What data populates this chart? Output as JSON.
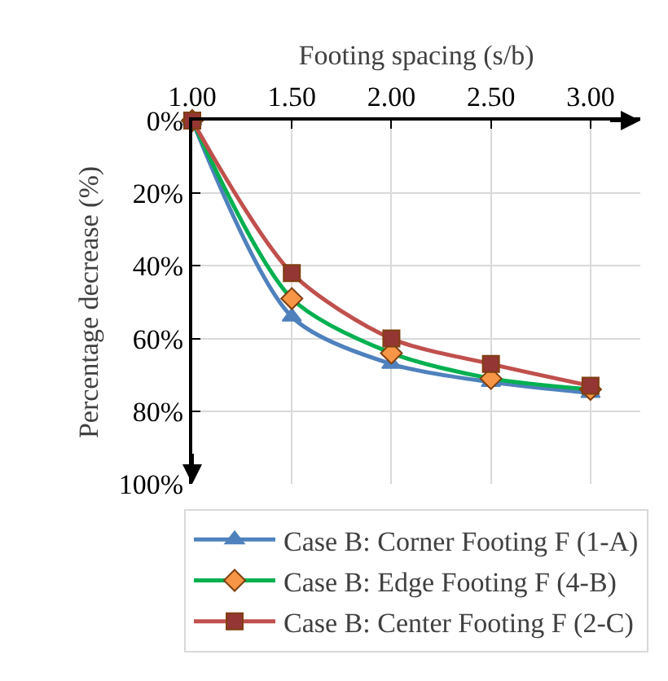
{
  "chart_data": {
    "type": "line",
    "xlabel": "Footing spacing (s/b)",
    "ylabel": "Percentage decrease (%)",
    "x": [
      1,
      1.5,
      2,
      2.5,
      3
    ],
    "series": [
      {
        "name": "Case B: Corner Footing F (1-A)",
        "color": "#4f81bd",
        "marker": "triangle",
        "values": [
          0,
          54,
          67,
          72,
          75
        ]
      },
      {
        "name": "Case B: Edge Footing F (4-B)",
        "color": "#00b050",
        "colors": [
          "#f79646",
          "#f79646",
          "#f79646",
          "#f79646",
          "#f79646"
        ],
        "marker": "diamond",
        "values": [
          0,
          49,
          64,
          71,
          74
        ]
      },
      {
        "name": "Case B: Center Footing F (2-C)",
        "color": "#c0504d",
        "colors": [
          "#943634",
          "#943634",
          "#943634",
          "#943634",
          "#943634"
        ],
        "marker": "square",
        "values": [
          0,
          42,
          60,
          67,
          73
        ]
      }
    ],
    "xlim": [
      1,
      3.25
    ],
    "xticks": [
      {
        "value": 1,
        "label": "1.00"
      },
      {
        "value": 1.5,
        "label": "1.50"
      },
      {
        "value": 2,
        "label": "2.00"
      },
      {
        "value": 2.5,
        "label": "2.50"
      },
      {
        "value": 3,
        "label": "3.00"
      }
    ],
    "ylim": [
      100,
      0
    ],
    "yticks": [
      {
        "value": 0,
        "label": "0%"
      },
      {
        "value": 20,
        "label": "20%"
      },
      {
        "value": 40,
        "label": "40%"
      },
      {
        "value": 60,
        "label": "60%"
      },
      {
        "value": 80,
        "label": "80%"
      },
      {
        "value": 100,
        "label": "100%"
      }
    ],
    "grid": true,
    "legend": "bottom",
    "line_style": "solid"
  }
}
